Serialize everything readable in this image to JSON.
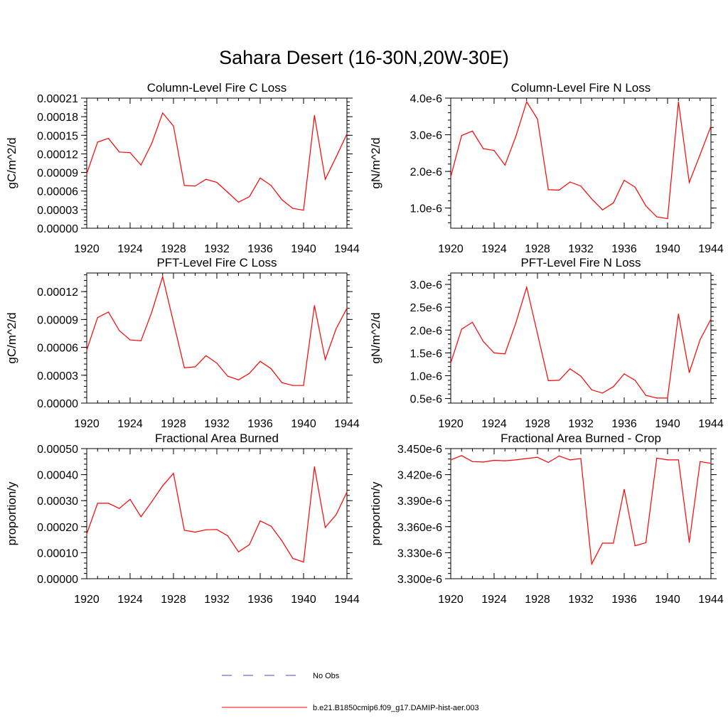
{
  "title": "Sahara Desert (16-30N,20W-30E)",
  "colors": {
    "model": "#ff0000",
    "obs": "#4a4ac8",
    "axis": "#000000"
  },
  "legend": {
    "obs_label": "No Obs",
    "model_label": "b.e21.B1850cmip6.f09_g17.DAMIP-hist-aer.003"
  },
  "chart_data": [
    {
      "type": "line",
      "title": "Column-Level Fire C Loss",
      "ylabel": "gC/m^2/d",
      "x": [
        1920,
        1921,
        1922,
        1923,
        1924,
        1925,
        1926,
        1927,
        1928,
        1929,
        1930,
        1931,
        1932,
        1933,
        1934,
        1935,
        1936,
        1937,
        1938,
        1939,
        1940,
        1941,
        1942,
        1943,
        1944
      ],
      "xlim": [
        1920,
        1944
      ],
      "xticks": [
        "1920",
        "1924",
        "1928",
        "1932",
        "1936",
        "1940",
        "1944"
      ],
      "ylim": [
        0,
        0.00021
      ],
      "yticks": [
        "0.00000",
        "0.00003",
        "0.00006",
        "0.00009",
        "0.00012",
        "0.00015",
        "0.00018",
        "0.00021"
      ],
      "series": [
        {
          "values": [
            8.8e-05,
            0.000139,
            0.000145,
            0.000123,
            0.000122,
            0.000102,
            0.000137,
            0.000186,
            0.000165,
            6.9e-05,
            6.8e-05,
            7.9e-05,
            7.4e-05,
            5.8e-05,
            4.2e-05,
            5.1e-05,
            8.1e-05,
            6.9e-05,
            4.6e-05,
            3.2e-05,
            2.9e-05,
            0.000182,
            7.9e-05,
            0.000115,
            0.000152
          ]
        }
      ]
    },
    {
      "type": "line",
      "title": "Column-Level Fire N Loss",
      "ylabel": "gN/m^2/d",
      "x": [
        1920,
        1921,
        1922,
        1923,
        1924,
        1925,
        1926,
        1927,
        1928,
        1929,
        1930,
        1931,
        1932,
        1933,
        1934,
        1935,
        1936,
        1937,
        1938,
        1939,
        1940,
        1941,
        1942,
        1943,
        1944
      ],
      "xlim": [
        1920,
        1944
      ],
      "xticks": [
        "1920",
        "1924",
        "1928",
        "1932",
        "1936",
        "1940",
        "1944"
      ],
      "ylim": [
        4.5e-07,
        4e-06
      ],
      "yticks": [
        "1.0e-6",
        "2.0e-6",
        "3.0e-6",
        "4.0e-6"
      ],
      "ytick_values": [
        1e-06,
        2e-06,
        3e-06,
        4e-06
      ],
      "series": [
        {
          "values": [
            1.85e-06,
            2.98e-06,
            3.1e-06,
            2.62e-06,
            2.57e-06,
            2.17e-06,
            2.95e-06,
            3.9e-06,
            3.43e-06,
            1.5e-06,
            1.49e-06,
            1.71e-06,
            1.6e-06,
            1.25e-06,
            9.5e-07,
            1.14e-06,
            1.76e-06,
            1.57e-06,
            1.06e-06,
            7.6e-07,
            7.1e-07,
            3.9e-06,
            1.7e-06,
            2.46e-06,
            3.23e-06
          ]
        }
      ]
    },
    {
      "type": "line",
      "title": "PFT-Level Fire C Loss",
      "ylabel": "gC/m^2/d",
      "x": [
        1920,
        1921,
        1922,
        1923,
        1924,
        1925,
        1926,
        1927,
        1928,
        1929,
        1930,
        1931,
        1932,
        1933,
        1934,
        1935,
        1936,
        1937,
        1938,
        1939,
        1940,
        1941,
        1942,
        1943,
        1944
      ],
      "xlim": [
        1920,
        1944
      ],
      "xticks": [
        "1920",
        "1924",
        "1928",
        "1932",
        "1936",
        "1940",
        "1944"
      ],
      "ylim": [
        0,
        0.00014
      ],
      "yticks": [
        "0.00000",
        "0.00003",
        "0.00006",
        "0.00009",
        "0.00012"
      ],
      "ytick_values": [
        0,
        3e-05,
        6e-05,
        9e-05,
        0.00012
      ],
      "series": [
        {
          "values": [
            5.7e-05,
            9.2e-05,
            9.8e-05,
            7.8e-05,
            6.8e-05,
            6.7e-05,
            9.8e-05,
            0.000136,
            8.7e-05,
            3.8e-05,
            3.9e-05,
            5.1e-05,
            4.3e-05,
            2.9e-05,
            2.5e-05,
            3.2e-05,
            4.5e-05,
            3.7e-05,
            2.2e-05,
            1.9e-05,
            1.9e-05,
            0.000105,
            4.7e-05,
            8e-05,
            0.000102
          ]
        }
      ]
    },
    {
      "type": "line",
      "title": "PFT-Level Fire N Loss",
      "ylabel": "gN/m^2/d",
      "x": [
        1920,
        1921,
        1922,
        1923,
        1924,
        1925,
        1926,
        1927,
        1928,
        1929,
        1930,
        1931,
        1932,
        1933,
        1934,
        1935,
        1936,
        1937,
        1938,
        1939,
        1940,
        1941,
        1942,
        1943,
        1944
      ],
      "xlim": [
        1920,
        1944
      ],
      "xticks": [
        "1920",
        "1924",
        "1928",
        "1932",
        "1936",
        "1940",
        "1944"
      ],
      "ylim": [
        4e-07,
        3.25e-06
      ],
      "yticks": [
        "0.5e-6",
        "1.0e-6",
        "1.5e-6",
        "2.0e-6",
        "2.5e-6",
        "3.0e-6"
      ],
      "ytick_values": [
        5e-07,
        1e-06,
        1.5e-06,
        2e-06,
        2.5e-06,
        3e-06
      ],
      "series": [
        {
          "values": [
            1.28e-06,
            2.02e-06,
            2.17e-06,
            1.75e-06,
            1.5e-06,
            1.48e-06,
            2.15e-06,
            2.94e-06,
            1.92e-06,
            8.9e-07,
            9e-07,
            1.15e-06,
            9.9e-07,
            6.9e-07,
            6.2e-07,
            7.6e-07,
            1.04e-06,
            9e-07,
            5.7e-07,
            5.1e-07,
            5.1e-07,
            2.35e-06,
            1.07e-06,
            1.79e-06,
            2.24e-06
          ]
        }
      ]
    },
    {
      "type": "line",
      "title": "Fractional Area Burned",
      "ylabel": "proportion/y",
      "x": [
        1920,
        1921,
        1922,
        1923,
        1924,
        1925,
        1926,
        1927,
        1928,
        1929,
        1930,
        1931,
        1932,
        1933,
        1934,
        1935,
        1936,
        1937,
        1938,
        1939,
        1940,
        1941,
        1942,
        1943,
        1944
      ],
      "xlim": [
        1920,
        1944
      ],
      "xticks": [
        "1920",
        "1924",
        "1928",
        "1932",
        "1936",
        "1940",
        "1944"
      ],
      "ylim": [
        0,
        0.0005
      ],
      "yticks": [
        "0.00000",
        "0.00010",
        "0.00020",
        "0.00030",
        "0.00040",
        "0.00050"
      ],
      "series": [
        {
          "values": [
            0.000172,
            0.00029,
            0.00029,
            0.00027,
            0.000305,
            0.000238,
            0.000296,
            0.000357,
            0.000405,
            0.000186,
            0.000179,
            0.000188,
            0.000189,
            0.000165,
            0.000103,
            0.000131,
            0.000222,
            0.000202,
            0.000146,
            7.8e-05,
            6.4e-05,
            0.00043,
            0.000197,
            0.000246,
            0.000333
          ]
        }
      ]
    },
    {
      "type": "line",
      "title": "Fractional Area Burned - Crop",
      "ylabel": "proportion/y",
      "x": [
        1920,
        1921,
        1922,
        1923,
        1924,
        1925,
        1926,
        1927,
        1928,
        1929,
        1930,
        1931,
        1932,
        1933,
        1934,
        1935,
        1936,
        1937,
        1938,
        1939,
        1940,
        1941,
        1942,
        1943,
        1944
      ],
      "xlim": [
        1920,
        1944
      ],
      "xticks": [
        "1920",
        "1924",
        "1928",
        "1932",
        "1936",
        "1940",
        "1944"
      ],
      "ylim": [
        3.3e-06,
        3.45e-06
      ],
      "yticks": [
        "3.300e-6",
        "3.330e-6",
        "3.360e-6",
        "3.390e-6",
        "3.420e-6",
        "3.450e-6"
      ],
      "series": [
        {
          "values": [
            3.437e-06,
            3.442e-06,
            3.435e-06,
            3.4345e-06,
            3.4365e-06,
            3.436e-06,
            3.437e-06,
            3.4385e-06,
            3.44e-06,
            3.434e-06,
            3.4415e-06,
            3.437e-06,
            3.4385e-06,
            3.317e-06,
            3.341e-06,
            3.341e-06,
            3.403e-06,
            3.338e-06,
            3.3415e-06,
            3.439e-06,
            3.437e-06,
            3.437e-06,
            3.342e-06,
            3.435e-06,
            3.433e-06
          ]
        }
      ]
    }
  ]
}
